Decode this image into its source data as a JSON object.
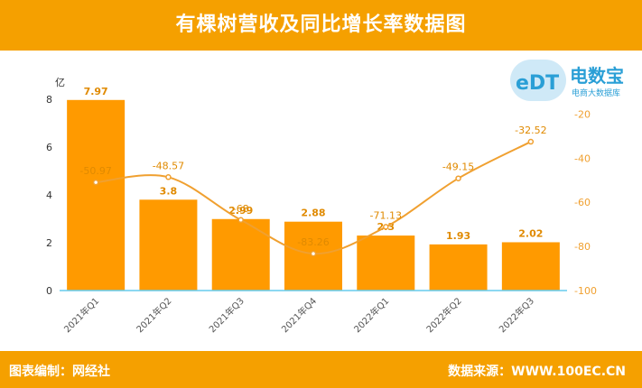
{
  "title": "有棵树营收及同比增长率数据图",
  "footer": {
    "left": "图表编制：网经社",
    "right": "数据来源：WWW.100EC.CN"
  },
  "logo": {
    "mark": "eDT",
    "brand": "电数宝",
    "sub": "电商大数据库"
  },
  "colors": {
    "bar": "#ff9a00",
    "line": "#f0a030",
    "header": "#f5a000",
    "axis": "#66ccee"
  },
  "chart_data": {
    "type": "bar",
    "categories": [
      "2021年Q1",
      "2021年Q2",
      "2021年Q3",
      "2021年Q4",
      "2022年Q1",
      "2022年Q2",
      "2022年Q3"
    ],
    "series": [
      {
        "values": [
          7.97,
          3.8,
          2.99,
          2.88,
          2.3,
          1.93,
          2.02
        ],
        "kind": "bar",
        "axis": "left"
      },
      {
        "values": [
          -50.97,
          -48.57,
          -68,
          -83.26,
          -71.13,
          -49.15,
          -32.52
        ],
        "kind": "line",
        "axis": "right"
      }
    ],
    "ylabel": "亿",
    "ylim": [
      0,
      8
    ],
    "yticks": [
      0,
      2,
      4,
      6,
      8
    ],
    "y2lim": [
      -100,
      -10
    ],
    "y2ticks": [
      -100,
      -80,
      -60,
      -40,
      -20
    ],
    "grid": false
  }
}
